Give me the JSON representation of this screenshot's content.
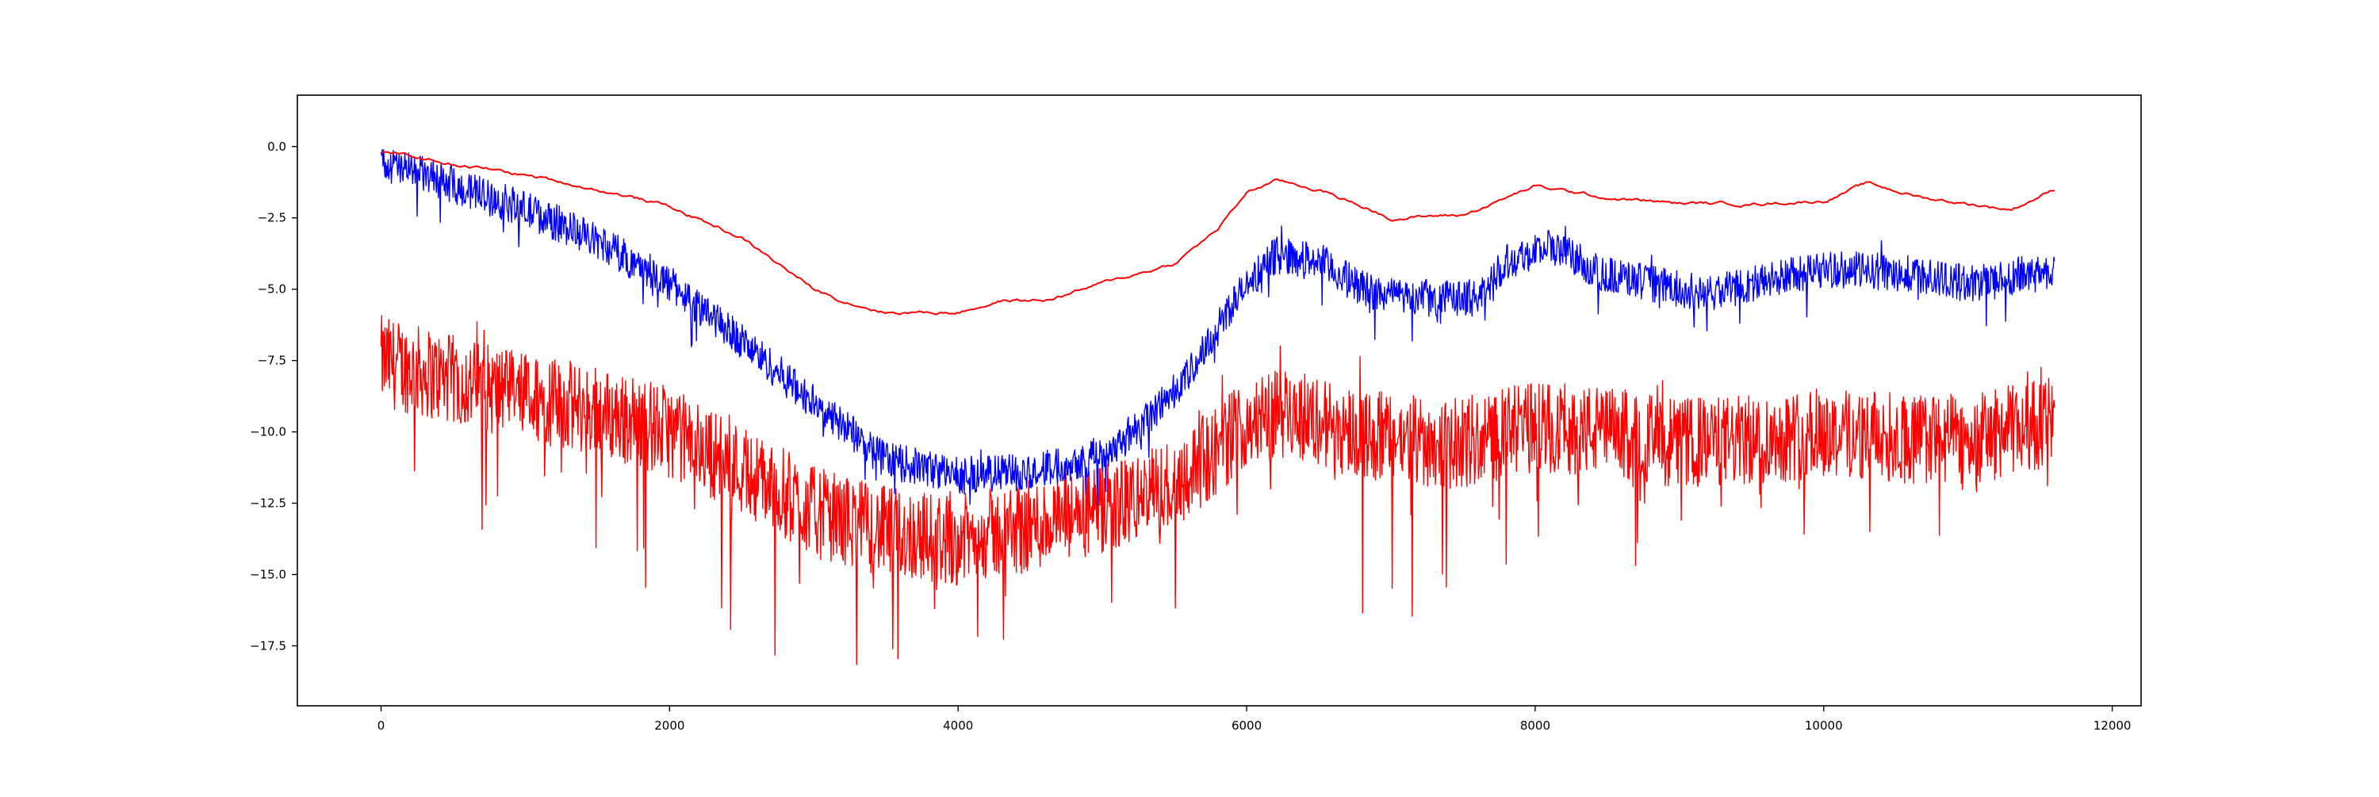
{
  "chart_data": {
    "type": "line",
    "title": "",
    "xlabel": "",
    "ylabel": "",
    "xlim": [
      -580,
      12200
    ],
    "ylim": [
      -19.6,
      1.8
    ],
    "x_ticks": [
      0,
      2000,
      4000,
      6000,
      8000,
      10000,
      12000
    ],
    "x_tick_labels": [
      "0",
      "2000",
      "4000",
      "6000",
      "8000",
      "10000",
      "12000"
    ],
    "y_ticks": [
      0.0,
      -2.5,
      -5.0,
      -7.5,
      -10.0,
      -12.5,
      -15.0,
      -17.5
    ],
    "y_tick_labels": [
      "0.0",
      "−2.5",
      "−5.0",
      "−7.5",
      "−10.0",
      "−12.5",
      "−15.0",
      "−17.5"
    ],
    "grid": false,
    "legend": "none",
    "x_range": [
      0,
      11600
    ],
    "series": [
      {
        "color": "#ff0000",
        "style": "noisy",
        "noise_amplitude": 1.6,
        "spike_depth": 5,
        "points": [
          [
            0,
            -7.5
          ],
          [
            500,
            -8.2
          ],
          [
            1000,
            -8.8
          ],
          [
            1500,
            -9.3
          ],
          [
            2000,
            -10.0
          ],
          [
            2500,
            -11.3
          ],
          [
            3000,
            -12.8
          ],
          [
            3500,
            -13.5
          ],
          [
            4000,
            -13.8
          ],
          [
            4500,
            -13.3
          ],
          [
            5000,
            -12.8
          ],
          [
            5500,
            -11.8
          ],
          [
            5800,
            -10.6
          ],
          [
            6000,
            -9.6
          ],
          [
            6300,
            -9.3
          ],
          [
            6600,
            -9.8
          ],
          [
            7000,
            -10.3
          ],
          [
            7500,
            -10.4
          ],
          [
            8000,
            -9.8
          ],
          [
            8500,
            -10.0
          ],
          [
            9000,
            -10.4
          ],
          [
            9500,
            -10.3
          ],
          [
            10000,
            -10.0
          ],
          [
            10500,
            -10.2
          ],
          [
            11000,
            -10.3
          ],
          [
            11600,
            -9.6
          ]
        ]
      },
      {
        "color": "#0000ff",
        "style": "noisy",
        "noise_amplitude": 0.65,
        "spike_depth": 1.2,
        "points": [
          [
            0,
            -0.6
          ],
          [
            300,
            -1.0
          ],
          [
            700,
            -1.7
          ],
          [
            1000,
            -2.2
          ],
          [
            1500,
            -3.3
          ],
          [
            2000,
            -4.8
          ],
          [
            2500,
            -6.8
          ],
          [
            3000,
            -9.0
          ],
          [
            3500,
            -11.0
          ],
          [
            4000,
            -11.5
          ],
          [
            4500,
            -11.4
          ],
          [
            5000,
            -10.8
          ],
          [
            5300,
            -9.6
          ],
          [
            5600,
            -8.0
          ],
          [
            5900,
            -5.5
          ],
          [
            6200,
            -3.8
          ],
          [
            6500,
            -4.0
          ],
          [
            6800,
            -5.0
          ],
          [
            7200,
            -5.3
          ],
          [
            7600,
            -5.3
          ],
          [
            7800,
            -4.0
          ],
          [
            8100,
            -3.5
          ],
          [
            8500,
            -4.5
          ],
          [
            8800,
            -4.8
          ],
          [
            9200,
            -5.2
          ],
          [
            9500,
            -4.8
          ],
          [
            10000,
            -4.3
          ],
          [
            10500,
            -4.4
          ],
          [
            11000,
            -4.8
          ],
          [
            11600,
            -4.3
          ]
        ]
      },
      {
        "color": "#ff0000",
        "style": "smooth",
        "noise_amplitude": 0.08,
        "spike_depth": 0,
        "points": [
          [
            0,
            -0.2
          ],
          [
            500,
            -0.6
          ],
          [
            1000,
            -1.0
          ],
          [
            1500,
            -1.5
          ],
          [
            2000,
            -2.1
          ],
          [
            2500,
            -3.2
          ],
          [
            3000,
            -5.0
          ],
          [
            3200,
            -5.4
          ],
          [
            3500,
            -5.8
          ],
          [
            4000,
            -5.8
          ],
          [
            4300,
            -5.4
          ],
          [
            4600,
            -5.4
          ],
          [
            5000,
            -4.8
          ],
          [
            5500,
            -4.1
          ],
          [
            5800,
            -2.9
          ],
          [
            6000,
            -1.6
          ],
          [
            6200,
            -1.2
          ],
          [
            6500,
            -1.5
          ],
          [
            7000,
            -2.5
          ],
          [
            7500,
            -2.4
          ],
          [
            8000,
            -1.4
          ],
          [
            8500,
            -1.8
          ],
          [
            9000,
            -2.0
          ],
          [
            9500,
            -2.0
          ],
          [
            10000,
            -1.9
          ],
          [
            10300,
            -1.3
          ],
          [
            10700,
            -1.8
          ],
          [
            11300,
            -2.2
          ],
          [
            11600,
            -1.5
          ]
        ]
      }
    ]
  }
}
